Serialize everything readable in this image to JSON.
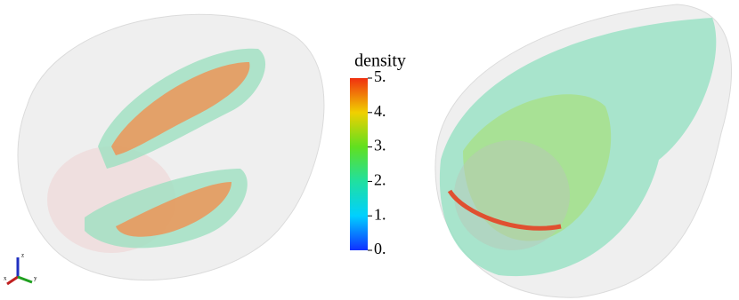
{
  "colorbar": {
    "title": "density",
    "range": [
      0,
      5
    ],
    "ticks": [
      {
        "value": 0,
        "label": "0."
      },
      {
        "value": 1,
        "label": "1."
      },
      {
        "value": 2,
        "label": "2."
      },
      {
        "value": 3,
        "label": "3."
      },
      {
        "value": 4,
        "label": "4."
      },
      {
        "value": 5,
        "label": "5."
      }
    ]
  },
  "triad": {
    "labels": [
      "z",
      "x",
      "y"
    ]
  }
}
